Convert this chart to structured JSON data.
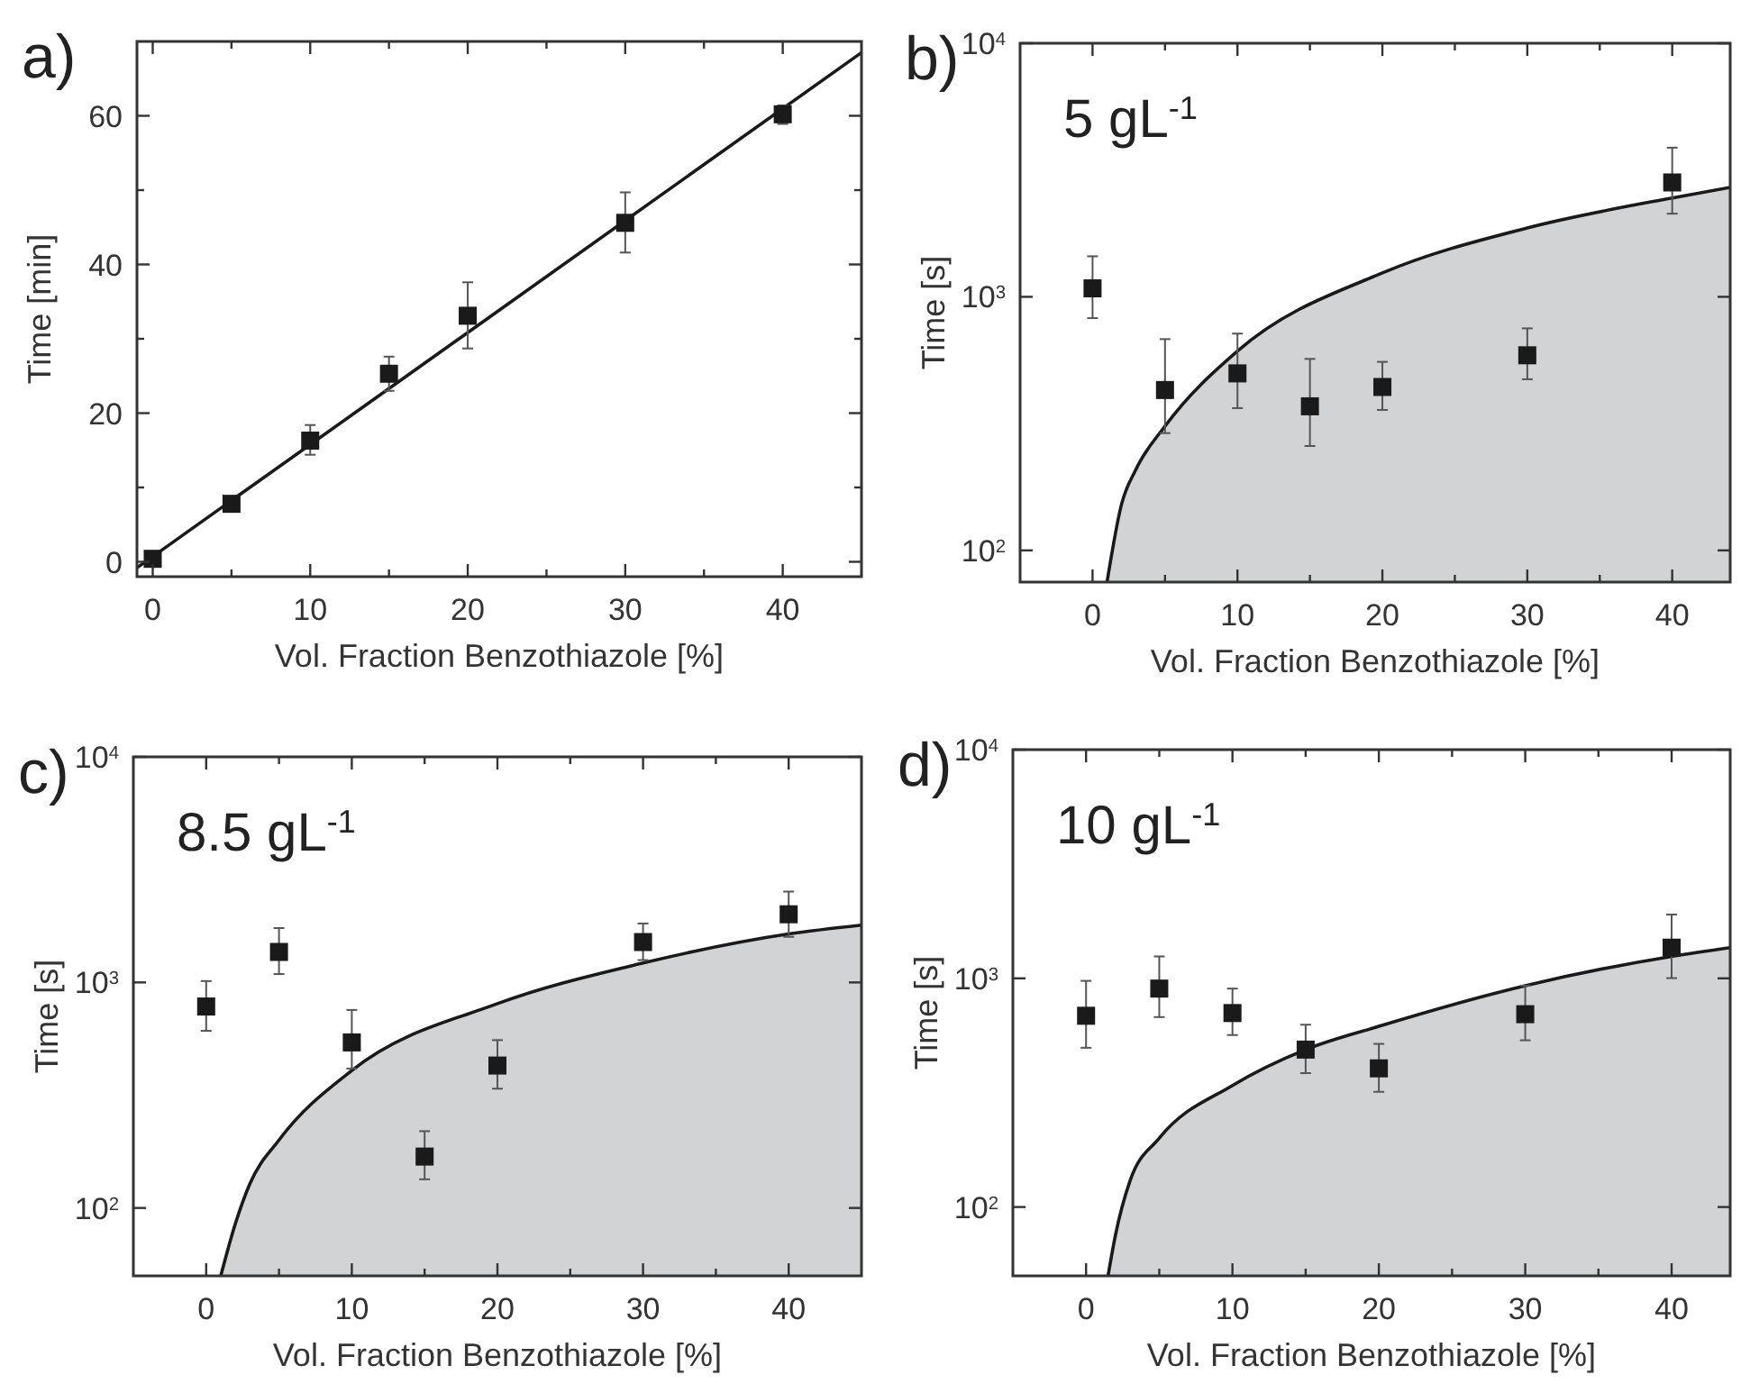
{
  "chart_data": [
    {
      "type": "scatter",
      "title": "a)",
      "xlabel": "Vol. Fraction Benzothiazole [%]",
      "ylabel": "Time [min]",
      "xlim": [
        -1,
        45
      ],
      "ylim": [
        -2,
        70
      ],
      "xticks": [
        0,
        {
          "value": 5,
          "label": null
        },
        10,
        {
          "value": 15,
          "label": null
        },
        20,
        {
          "value": 25,
          "label": null
        },
        30,
        {
          "value": 35,
          "label": null
        },
        40
      ],
      "yticks": [
        0,
        {
          "value": 10,
          "label": null
        },
        20,
        {
          "value": 30,
          "label": null
        },
        40,
        {
          "value": 50,
          "label": null
        },
        60
      ],
      "grid": false,
      "series": [
        {
          "type": "line",
          "color": "#1a1a1a",
          "x": [
            -1,
            45
          ],
          "values": [
            -0.8,
            68.5
          ]
        },
        {
          "type": "scatter",
          "marker": "square",
          "color": "#1a1a1a",
          "x": [
            0,
            5,
            10,
            15,
            20,
            30,
            40
          ],
          "values": [
            0.4,
            7.8,
            16.3,
            25.3,
            33.1,
            45.6,
            60.2
          ],
          "errors": [
            null,
            null,
            [
              14.4,
              18.4
            ],
            [
              23.0,
              27.6
            ],
            [
              28.7,
              37.6
            ],
            [
              41.6,
              49.7
            ],
            [
              58.9,
              61.4
            ]
          ]
        }
      ]
    },
    {
      "type": "scatter",
      "title": "b)",
      "xlabel": "Vol. Fraction Benzothiazole [%]",
      "ylabel": "Time [s]",
      "annotations": [
        "5 gL$^{-1}$"
      ],
      "log": "y",
      "xlim": [
        -5,
        44
      ],
      "ylim": [
        75,
        10000
      ],
      "xticks": [
        0,
        {
          "value": 5,
          "label": null
        },
        10,
        {
          "value": 15,
          "label": null
        },
        20,
        {
          "value": 25,
          "label": null
        },
        30,
        {
          "value": 35,
          "label": null
        },
        40
      ],
      "yticks": [
        {
          "value": 100,
          "label": "10$^{2}$"
        },
        {
          "value": 1000,
          "label": "10$^{3}$"
        },
        {
          "value": 10000,
          "label": "10$^{4}$"
        }
      ],
      "grid": false,
      "series": [
        {
          "type": "area",
          "color": "#d1d3d4",
          "x": [
            1,
            2,
            3,
            5,
            10,
            20,
            30,
            40,
            44
          ],
          "values": [
            75,
            152,
            209,
            309,
            611,
            1242,
            1870,
            2455,
            2700
          ]
        },
        {
          "type": "scatter",
          "marker": "square",
          "color": "#1a1a1a",
          "x": [
            0,
            5,
            10,
            15,
            20,
            30,
            40
          ],
          "values": [
            1080,
            429,
            499,
            370,
            441,
            588,
            2825
          ],
          "errors": [
            [
              824,
              1445
            ],
            [
              290,
              681
            ],
            [
              364,
              716
            ],
            [
              258,
              569
            ],
            [
              358,
              554
            ],
            [
              473,
              751
            ],
            [
              2128,
              3874
            ]
          ]
        }
      ]
    },
    {
      "type": "scatter",
      "title": "c)",
      "xlabel": "Vol. Fraction Benzothiazole [%]",
      "ylabel": "Time [s]",
      "annotations": [
        "8.5 gL$^{-1}$"
      ],
      "log": "y",
      "xlim": [
        -5,
        45
      ],
      "ylim": [
        50,
        10000
      ],
      "xticks": [
        0,
        {
          "value": 5,
          "label": null
        },
        10,
        {
          "value": 15,
          "label": null
        },
        20,
        {
          "value": 25,
          "label": null
        },
        30,
        {
          "value": 35,
          "label": null
        },
        40
      ],
      "yticks": [
        {
          "value": 100,
          "label": "10$^{2}$"
        },
        {
          "value": 1000,
          "label": "10$^{3}$"
        },
        {
          "value": 10000,
          "label": "10$^{4}$"
        }
      ],
      "grid": false,
      "series": [
        {
          "type": "area",
          "color": "#d1d3d4",
          "x": [
            1,
            2,
            3,
            5,
            10,
            20,
            30,
            40,
            45
          ],
          "values": [
            50,
            85,
            128,
            200,
            407,
            805,
            1219,
            1640,
            1795
          ]
        },
        {
          "type": "scatter",
          "marker": "square",
          "color": "#1a1a1a",
          "x": [
            0,
            5,
            10,
            15,
            20,
            30,
            40
          ],
          "values": [
            782,
            1365,
            542,
            169,
            428,
            1510,
            2005
          ],
          "errors": [
            [
              610,
              1014
            ],
            [
              1089,
              1742
            ],
            [
              415,
              755
            ],
            [
              134,
              219
            ],
            [
              338,
              555
            ],
            [
              1256,
              1825
            ],
            [
              1592,
              2528
            ]
          ]
        }
      ]
    },
    {
      "type": "scatter",
      "title": "d)",
      "xlabel": "Vol. Fraction Benzothiazole [%]",
      "ylabel": "Time [s]",
      "annotations": [
        "10 gL$^{-1}$"
      ],
      "log": "y",
      "xlim": [
        -5,
        44
      ],
      "ylim": [
        50,
        10000
      ],
      "xticks": [
        0,
        {
          "value": 5,
          "label": null
        },
        10,
        {
          "value": 15,
          "label": null
        },
        20,
        {
          "value": 25,
          "label": null
        },
        30,
        {
          "value": 35,
          "label": null
        },
        40
      ],
      "yticks": [
        {
          "value": 100,
          "label": "10$^{2}$"
        },
        {
          "value": 1000,
          "label": "10$^{3}$"
        },
        {
          "value": 10000,
          "label": "10$^{4}$"
        }
      ],
      "grid": false,
      "series": [
        {
          "type": "area",
          "color": "#d1d3d4",
          "x": [
            1.5,
            2,
            3,
            5,
            10,
            15,
            20,
            30,
            40,
            44
          ],
          "values": [
            50,
            75,
            130,
            200,
            340,
            488,
            617,
            929,
            1247,
            1362
          ]
        },
        {
          "type": "scatter",
          "marker": "square",
          "color": "#1a1a1a",
          "x": [
            0,
            5,
            10,
            15,
            20,
            30,
            40
          ],
          "values": [
            686,
            902,
            705,
            488,
            404,
            697,
            1362
          ],
          "errors": [
            [
              497,
              975
            ],
            [
              677,
              1247
            ],
            [
              565,
              902
            ],
            [
              385,
              627
            ],
            [
              319,
              517
            ],
            [
              536,
              929
            ],
            [
              1002,
              1901
            ]
          ]
        }
      ]
    }
  ]
}
